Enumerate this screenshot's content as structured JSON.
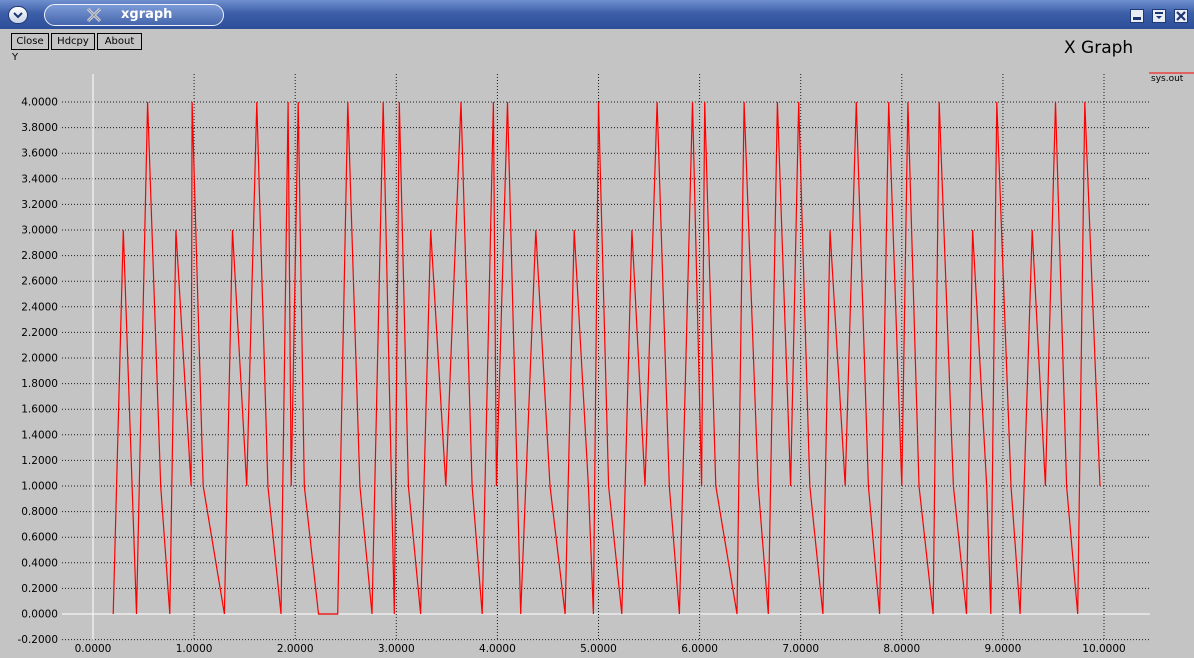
{
  "window": {
    "title": "xgraph",
    "buttons": [
      "minimize-icon",
      "maximize-icon",
      "close-icon"
    ],
    "titlebar_color": "#3d5fa8"
  },
  "toolbar": {
    "close_label": "Close",
    "hdcpy_label": "Hdcpy",
    "about_label": "About"
  },
  "graph": {
    "title": "X Graph",
    "y_axis_title": "Y",
    "legend": [
      "sys.out"
    ]
  },
  "chart_data": {
    "type": "line",
    "title": "X Graph",
    "xlabel": "",
    "ylabel": "Y",
    "xlim": [
      -0.25,
      10.45
    ],
    "ylim": [
      -0.2,
      4.1
    ],
    "x_ticks": [
      "0.0000",
      "1.0000",
      "2.0000",
      "3.0000",
      "4.0000",
      "5.0000",
      "6.0000",
      "7.0000",
      "8.0000",
      "9.0000",
      "10.0000"
    ],
    "y_ticks": [
      "-0.2000",
      "0.0000",
      "0.2000",
      "0.4000",
      "0.6000",
      "0.8000",
      "1.0000",
      "1.2000",
      "1.4000",
      "1.6000",
      "1.8000",
      "2.0000",
      "2.2000",
      "2.4000",
      "2.6000",
      "2.8000",
      "3.0000",
      "3.2000",
      "3.4000",
      "3.6000",
      "3.8000",
      "4.0000"
    ],
    "grid": true,
    "legend_position": "top-right",
    "series": [
      {
        "name": "sys.out",
        "color": "#ff0000",
        "points": [
          [
            0.2,
            0
          ],
          [
            0.3,
            3
          ],
          [
            0.43,
            0
          ],
          [
            0.54,
            4
          ],
          [
            0.67,
            1
          ],
          [
            0.76,
            0
          ],
          [
            0.82,
            3
          ],
          [
            0.97,
            1
          ],
          [
            0.98,
            4
          ],
          [
            1.09,
            1
          ],
          [
            1.3,
            0
          ],
          [
            1.38,
            3
          ],
          [
            1.52,
            1
          ],
          [
            1.62,
            4
          ],
          [
            1.73,
            1
          ],
          [
            1.86,
            0
          ],
          [
            1.93,
            4
          ],
          [
            1.96,
            1
          ],
          [
            2.03,
            4
          ],
          [
            2.09,
            1
          ],
          [
            2.23,
            0
          ],
          [
            2.42,
            0
          ],
          [
            2.52,
            4
          ],
          [
            2.64,
            1
          ],
          [
            2.76,
            0
          ],
          [
            2.87,
            4
          ],
          [
            2.98,
            0
          ],
          [
            3.03,
            4
          ],
          [
            3.12,
            1
          ],
          [
            3.24,
            0
          ],
          [
            3.34,
            3
          ],
          [
            3.49,
            1
          ],
          [
            3.64,
            4
          ],
          [
            3.75,
            1
          ],
          [
            3.85,
            0
          ],
          [
            3.96,
            4
          ],
          [
            3.99,
            1
          ],
          [
            4.1,
            4
          ],
          [
            4.23,
            0
          ],
          [
            4.38,
            3
          ],
          [
            4.52,
            1
          ],
          [
            4.67,
            0
          ],
          [
            4.76,
            3
          ],
          [
            4.9,
            1
          ],
          [
            4.95,
            0
          ],
          [
            5.0,
            4
          ],
          [
            5.1,
            1
          ],
          [
            5.23,
            0
          ],
          [
            5.33,
            3
          ],
          [
            5.46,
            1
          ],
          [
            5.58,
            4
          ],
          [
            5.7,
            1
          ],
          [
            5.8,
            0
          ],
          [
            5.93,
            4
          ],
          [
            6.02,
            1
          ],
          [
            6.05,
            4
          ],
          [
            6.16,
            1
          ],
          [
            6.37,
            0
          ],
          [
            6.44,
            4
          ],
          [
            6.58,
            1
          ],
          [
            6.68,
            0
          ],
          [
            6.77,
            4
          ],
          [
            6.9,
            1
          ],
          [
            6.98,
            4
          ],
          [
            7.09,
            1
          ],
          [
            7.22,
            0
          ],
          [
            7.29,
            3
          ],
          [
            7.44,
            1
          ],
          [
            7.55,
            4
          ],
          [
            7.67,
            1
          ],
          [
            7.78,
            0
          ],
          [
            7.87,
            4
          ],
          [
            8.0,
            1
          ],
          [
            8.06,
            4
          ],
          [
            8.17,
            1
          ],
          [
            8.31,
            0
          ],
          [
            8.37,
            4
          ],
          [
            8.51,
            1
          ],
          [
            8.64,
            0
          ],
          [
            8.7,
            3
          ],
          [
            8.84,
            1
          ],
          [
            8.88,
            0
          ],
          [
            8.94,
            4
          ],
          [
            9.08,
            1
          ],
          [
            9.17,
            0
          ],
          [
            9.29,
            3
          ],
          [
            9.42,
            1
          ],
          [
            9.52,
            4
          ],
          [
            9.63,
            1
          ],
          [
            9.74,
            0
          ],
          [
            9.81,
            4
          ],
          [
            9.96,
            1
          ]
        ]
      }
    ]
  }
}
